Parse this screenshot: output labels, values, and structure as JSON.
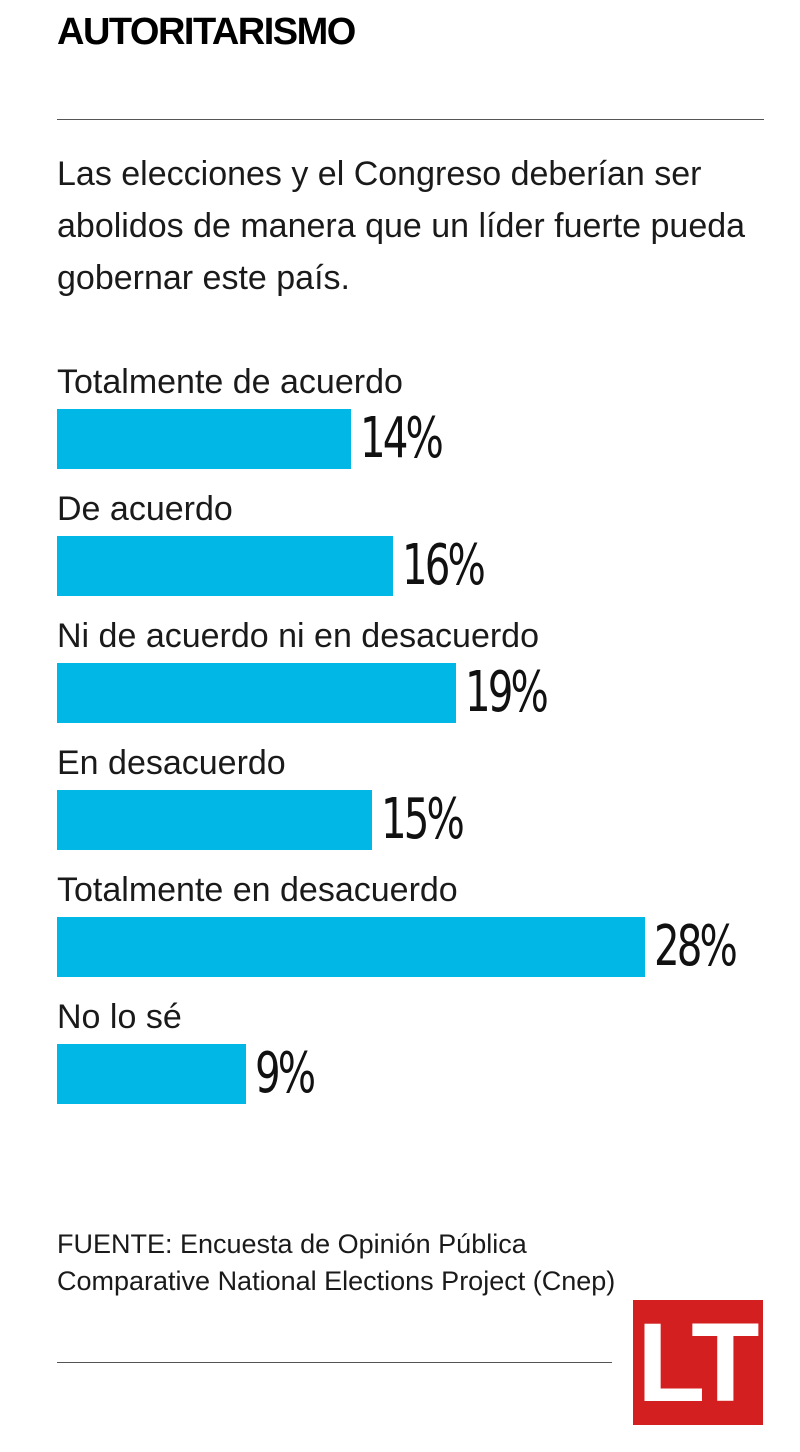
{
  "title": "AUTORITARISMO",
  "question": "Las elecciones y el Congreso deberían ser abolidos de manera que un líder fuerte pueda gobernar este país.",
  "source": "FUENTE: Encuesta de Opinión Pública Comparative National Elections Project (Cnep)",
  "logo": "LT",
  "colors": {
    "bar": "#00b7e6",
    "logo": "#d31f1f"
  },
  "chart_data": {
    "type": "bar",
    "orientation": "horizontal",
    "categories": [
      "Totalmente de acuerdo",
      "De acuerdo",
      "Ni de acuerdo ni en desacuerdo",
      "En desacuerdo",
      "Totalmente en desacuerdo",
      "No lo sé"
    ],
    "values": [
      14,
      16,
      19,
      15,
      28,
      9
    ],
    "value_labels": [
      "14%",
      "16%",
      "19%",
      "15%",
      "28%",
      "9%"
    ],
    "xlim": [
      0,
      28
    ],
    "grid": false
  }
}
